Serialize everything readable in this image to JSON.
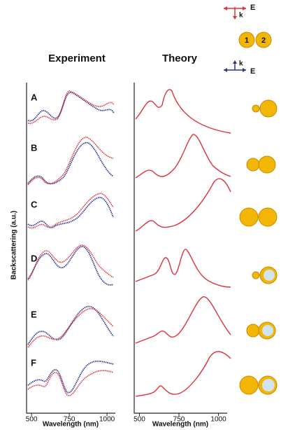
{
  "figure": {
    "columns": [
      "Experiment",
      "Theory"
    ],
    "y_label": "Backscattering (a.u.)",
    "x_label": "Wavelength (nm)",
    "xlim": [
      467,
      1055
    ],
    "xticks": [
      500,
      750,
      1000
    ],
    "rows": [
      "A",
      "B",
      "C",
      "D",
      "E",
      "F"
    ],
    "legend": {
      "field": "E",
      "wavevector": "k",
      "particles": [
        "1",
        "2"
      ]
    }
  }
}
